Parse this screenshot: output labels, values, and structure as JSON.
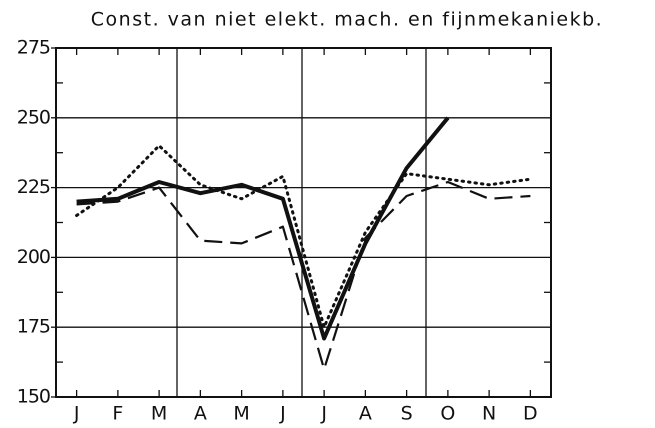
{
  "chart_data": {
    "type": "line",
    "title": "Const. van niet elekt. mach. en fijnmekaniekb.",
    "categories": [
      "J",
      "F",
      "M",
      "A",
      "M",
      "J",
      "J",
      "A",
      "S",
      "O",
      "N",
      "D"
    ],
    "series": [
      {
        "color": "#111111",
        "linestyle": "solid",
        "values": [
          220,
          221,
          227,
          223,
          226,
          221,
          171,
          205,
          232,
          250,
          null,
          null
        ]
      },
      {
        "color": "#111111",
        "linestyle": "dotted",
        "values": [
          215,
          225,
          240,
          226,
          221,
          229,
          175,
          209,
          230,
          228,
          226,
          228
        ]
      },
      {
        "color": "#111111",
        "linestyle": "dashed",
        "values": [
          219,
          220,
          225,
          206,
          205,
          211,
          160,
          207,
          222,
          227,
          221,
          222
        ]
      }
    ],
    "ylim": [
      150,
      275
    ],
    "yticks": [
      150,
      175,
      200,
      225,
      250,
      275
    ],
    "grid": true
  }
}
